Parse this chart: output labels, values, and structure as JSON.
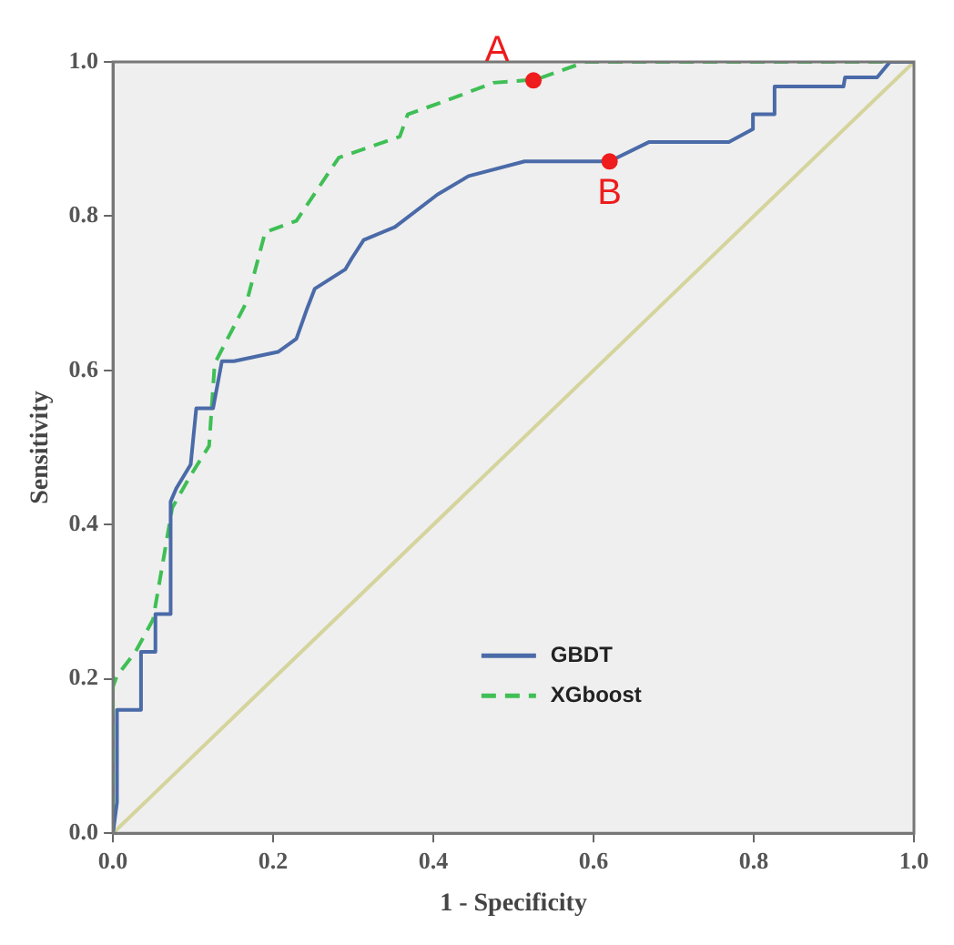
{
  "chart_data": {
    "type": "line",
    "xlabel": "1 - Specificity",
    "ylabel": "Sensitivity",
    "xlim": [
      0,
      1
    ],
    "ylim": [
      0,
      1
    ],
    "xticks": [
      {
        "value": 0,
        "label": "0.0"
      },
      {
        "value": 0.2,
        "label": "0.2"
      },
      {
        "value": 0.4,
        "label": "0.4"
      },
      {
        "value": 0.6,
        "label": "0.6"
      },
      {
        "value": 0.8,
        "label": "0.8"
      },
      {
        "value": 1,
        "label": "1.0"
      }
    ],
    "yticks": [
      {
        "value": 0,
        "label": "0.0"
      },
      {
        "value": 0.2,
        "label": "0.2"
      },
      {
        "value": 0.4,
        "label": "0.4"
      },
      {
        "value": 0.6,
        "label": "0.6"
      },
      {
        "value": 0.8,
        "label": "0.8"
      },
      {
        "value": 1,
        "label": "1.0"
      }
    ],
    "grid": false,
    "legend": "bottom right",
    "marker": "none",
    "series": [
      {
        "name": "GBDT",
        "color": "#4a6aa8",
        "line_style": "solid",
        "x": [
          0,
          0.005,
          0.005,
          0.035,
          0.035,
          0.053,
          0.053,
          0.072,
          0.072,
          0.079,
          0.097,
          0.104,
          0.125,
          0.136,
          0.151,
          0.206,
          0.229,
          0.243,
          0.252,
          0.29,
          0.298,
          0.313,
          0.352,
          0.405,
          0.444,
          0.514,
          0.62,
          0.669,
          0.769,
          0.799,
          0.799,
          0.826,
          0.826,
          0.912,
          0.914,
          0.954,
          0.97,
          1
        ],
        "values": [
          0,
          0.04,
          0.16,
          0.16,
          0.235,
          0.235,
          0.284,
          0.284,
          0.43,
          0.447,
          0.478,
          0.551,
          0.551,
          0.612,
          0.612,
          0.624,
          0.641,
          0.682,
          0.706,
          0.731,
          0.745,
          0.769,
          0.786,
          0.828,
          0.852,
          0.871,
          0.871,
          0.896,
          0.896,
          0.913,
          0.932,
          0.932,
          0.968,
          0.968,
          0.98,
          0.98,
          1,
          1
        ]
      },
      {
        "name": "XGboost",
        "color": "#3fbf55",
        "line_style": "dashed",
        "x": [
          0,
          0,
          0.005,
          0.028,
          0.05,
          0.058,
          0.074,
          0.097,
          0.12,
          0.127,
          0.167,
          0.19,
          0.229,
          0.282,
          0.358,
          0.368,
          0.414,
          0.475,
          0.514,
          0.525,
          0.59,
          1
        ],
        "values": [
          0,
          0.19,
          0.204,
          0.235,
          0.277,
          0.325,
          0.422,
          0.464,
          0.502,
          0.609,
          0.689,
          0.779,
          0.794,
          0.876,
          0.903,
          0.932,
          0.949,
          0.973,
          0.976,
          0.976,
          1,
          1
        ]
      },
      {
        "color": "#d4d49c",
        "line_style": "solid",
        "x": [
          0,
          1
        ],
        "values": [
          0,
          1
        ]
      }
    ],
    "annotations": [
      {
        "text": "A",
        "x": 0.525,
        "y": 0.976
      },
      {
        "text": "B",
        "x": 0.62,
        "y": 0.871
      }
    ]
  }
}
